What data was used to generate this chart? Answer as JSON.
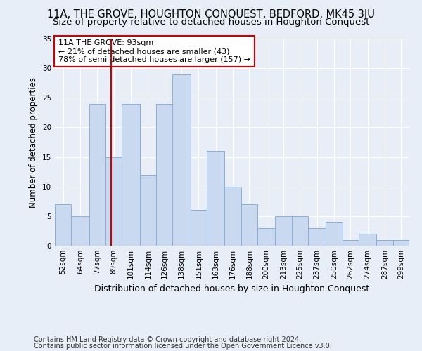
{
  "title": "11A, THE GROVE, HOUGHTON CONQUEST, BEDFORD, MK45 3JU",
  "subtitle": "Size of property relative to detached houses in Houghton Conquest",
  "xlabel": "Distribution of detached houses by size in Houghton Conquest",
  "ylabel": "Number of detached properties",
  "footer_line1": "Contains HM Land Registry data © Crown copyright and database right 2024.",
  "footer_line2": "Contains public sector information licensed under the Open Government Licence v3.0.",
  "annotation_line1": "11A THE GROVE: 93sqm",
  "annotation_line2": "← 21% of detached houses are smaller (43)",
  "annotation_line3": "78% of semi-detached houses are larger (157) →",
  "bar_color": "#c9d9f0",
  "bar_edge_color": "#8bafd4",
  "vline_color": "#cc0000",
  "vline_x": 93,
  "categories": [
    "52sqm",
    "64sqm",
    "77sqm",
    "89sqm",
    "101sqm",
    "114sqm",
    "126sqm",
    "138sqm",
    "151sqm",
    "163sqm",
    "176sqm",
    "188sqm",
    "200sqm",
    "213sqm",
    "225sqm",
    "237sqm",
    "250sqm",
    "262sqm",
    "274sqm",
    "287sqm",
    "299sqm"
  ],
  "bar_heights": [
    7,
    5,
    24,
    15,
    24,
    12,
    24,
    29,
    6,
    16,
    10,
    7,
    3,
    5,
    5,
    3,
    4,
    1,
    2,
    1,
    1
  ],
  "bin_edges": [
    52,
    64,
    77,
    89,
    101,
    114,
    126,
    138,
    151,
    163,
    176,
    188,
    200,
    213,
    225,
    237,
    250,
    262,
    274,
    287,
    299,
    311
  ],
  "ylim": [
    0,
    35
  ],
  "yticks": [
    0,
    5,
    10,
    15,
    20,
    25,
    30,
    35
  ],
  "background_color": "#e8eef8",
  "plot_background": "#e8eef8",
  "grid_color": "#ffffff",
  "annotation_box_color": "#ffffff",
  "annotation_box_edge": "#cc0000",
  "title_fontsize": 10.5,
  "subtitle_fontsize": 9.5,
  "xlabel_fontsize": 9,
  "ylabel_fontsize": 8.5,
  "tick_fontsize": 7.5,
  "annotation_fontsize": 8,
  "footer_fontsize": 7
}
